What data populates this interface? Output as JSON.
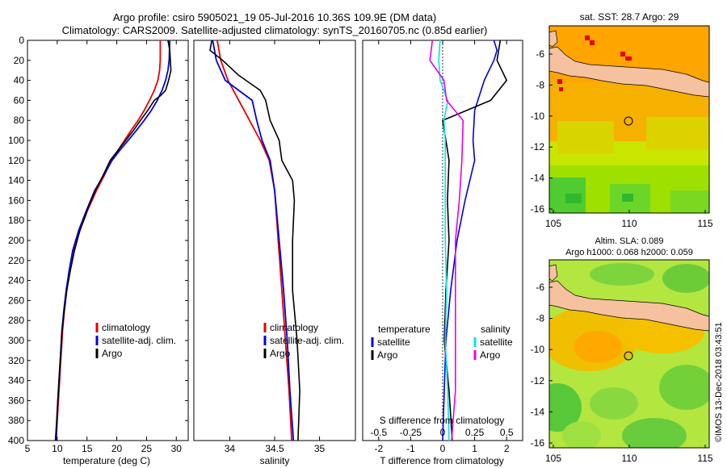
{
  "header": {
    "title_line1": "Argo profile: csiro 5905021_19 05-Jul-2016 10.36S 109.9E (DM data)",
    "title_line2": "Climatology: CARS2009. Satellite-adjusted climatology: synTS_20160705.nc (0.85d earlier)"
  },
  "colors": {
    "climatology": "#e60000",
    "satellite": "#0000e6",
    "argo": "#000000",
    "sat_salinity": "#00e6e6",
    "argo_salinity_diff": "#e600e6"
  },
  "depth_ticks": [
    "0",
    "20",
    "40",
    "60",
    "80",
    "100",
    "120",
    "140",
    "160",
    "180",
    "200",
    "220",
    "240",
    "260",
    "280",
    "300",
    "320",
    "340",
    "360",
    "380",
    "400"
  ],
  "chart_data": [
    {
      "type": "line",
      "xlabel": "temperature (deg C)",
      "ylabel": "depth",
      "xlim": [
        5,
        32
      ],
      "ylim": [
        400,
        0
      ],
      "xticks": [
        "5",
        "10",
        "15",
        "20",
        "25",
        "30"
      ],
      "legend": [
        "climatology",
        "satellite-adj. clim.",
        "Argo"
      ],
      "series": [
        {
          "name": "climatology",
          "points": [
            [
              27.3,
              0
            ],
            [
              27.3,
              20
            ],
            [
              27.2,
              30
            ],
            [
              26.9,
              40
            ],
            [
              26.3,
              50
            ],
            [
              25.5,
              60
            ],
            [
              24.6,
              70
            ],
            [
              23.6,
              80
            ],
            [
              22.4,
              90
            ],
            [
              21.3,
              100
            ],
            [
              20.2,
              110
            ],
            [
              19.1,
              120
            ],
            [
              17.9,
              135
            ],
            [
              16.6,
              150
            ],
            [
              15.1,
              170
            ],
            [
              13.8,
              190
            ],
            [
              12.8,
              210
            ],
            [
              12.1,
              230
            ],
            [
              11.6,
              250
            ],
            [
              11.2,
              270
            ],
            [
              10.9,
              290
            ],
            [
              10.7,
              310
            ],
            [
              10.5,
              330
            ],
            [
              10.3,
              350
            ],
            [
              10.1,
              370
            ],
            [
              9.9,
              390
            ],
            [
              9.8,
              400
            ]
          ]
        },
        {
          "name": "satellite-adj. clim.",
          "points": [
            [
              28.9,
              0
            ],
            [
              28.8,
              20
            ],
            [
              28.6,
              30
            ],
            [
              28.2,
              40
            ],
            [
              27.6,
              50
            ],
            [
              26.8,
              60
            ],
            [
              25.8,
              70
            ],
            [
              24.6,
              80
            ],
            [
              23.3,
              90
            ],
            [
              21.9,
              100
            ],
            [
              20.5,
              110
            ],
            [
              19.2,
              120
            ],
            [
              17.8,
              135
            ],
            [
              16.3,
              150
            ],
            [
              14.9,
              170
            ],
            [
              13.6,
              190
            ],
            [
              12.6,
              210
            ],
            [
              12.0,
              230
            ],
            [
              11.5,
              250
            ],
            [
              11.1,
              270
            ],
            [
              10.8,
              290
            ],
            [
              10.6,
              310
            ],
            [
              10.4,
              330
            ],
            [
              10.2,
              350
            ],
            [
              10.0,
              370
            ],
            [
              9.9,
              390
            ],
            [
              9.8,
              400
            ]
          ]
        },
        {
          "name": "Argo",
          "points": [
            [
              28.6,
              0
            ],
            [
              28.9,
              10
            ],
            [
              29.0,
              20
            ],
            [
              29.1,
              30
            ],
            [
              28.7,
              40
            ],
            [
              28.2,
              50
            ],
            [
              27.4,
              55
            ],
            [
              26.3,
              60
            ],
            [
              25.2,
              70
            ],
            [
              24.0,
              80
            ],
            [
              22.8,
              90
            ],
            [
              21.5,
              100
            ],
            [
              20.2,
              110
            ],
            [
              18.9,
              120
            ],
            [
              17.7,
              135
            ],
            [
              16.4,
              150
            ],
            [
              15.0,
              170
            ],
            [
              13.8,
              190
            ],
            [
              12.9,
              210
            ],
            [
              12.2,
              230
            ],
            [
              11.6,
              250
            ],
            [
              11.2,
              270
            ],
            [
              10.8,
              290
            ],
            [
              10.6,
              310
            ],
            [
              10.4,
              330
            ],
            [
              10.2,
              350
            ],
            [
              10.0,
              370
            ],
            [
              9.8,
              390
            ],
            [
              9.7,
              400
            ]
          ]
        }
      ]
    },
    {
      "type": "line",
      "xlabel": "salinity",
      "ylabel": "depth",
      "xlim": [
        33.6,
        35.4
      ],
      "ylim": [
        400,
        0
      ],
      "xticks": [
        "34",
        "34.5",
        "35"
      ],
      "legend": [
        "climatology",
        "satellite-adj. clim.",
        "Argo"
      ],
      "series": [
        {
          "name": "climatology",
          "points": [
            [
              33.86,
              0
            ],
            [
              33.9,
              20
            ],
            [
              33.98,
              40
            ],
            [
              34.1,
              60
            ],
            [
              34.22,
              80
            ],
            [
              34.34,
              100
            ],
            [
              34.44,
              120
            ],
            [
              34.5,
              150
            ],
            [
              34.54,
              200
            ],
            [
              34.58,
              250
            ],
            [
              34.62,
              300
            ],
            [
              34.66,
              350
            ],
            [
              34.69,
              400
            ]
          ]
        },
        {
          "name": "satellite-adj. clim.",
          "points": [
            [
              33.81,
              0
            ],
            [
              33.85,
              20
            ],
            [
              33.95,
              40
            ],
            [
              34.25,
              60
            ],
            [
              34.3,
              80
            ],
            [
              34.36,
              100
            ],
            [
              34.45,
              120
            ],
            [
              34.5,
              150
            ],
            [
              34.55,
              200
            ],
            [
              34.6,
              250
            ],
            [
              34.64,
              300
            ],
            [
              34.67,
              350
            ],
            [
              34.71,
              400
            ]
          ]
        },
        {
          "name": "Argo",
          "points": [
            [
              33.8,
              0
            ],
            [
              33.78,
              10
            ],
            [
              33.92,
              20
            ],
            [
              34.1,
              35
            ],
            [
              34.34,
              50
            ],
            [
              34.4,
              60
            ],
            [
              34.45,
              80
            ],
            [
              34.55,
              100
            ],
            [
              34.58,
              120
            ],
            [
              34.7,
              140
            ],
            [
              34.72,
              160
            ],
            [
              34.7,
              200
            ],
            [
              34.7,
              250
            ],
            [
              34.75,
              300
            ],
            [
              34.78,
              350
            ],
            [
              34.76,
              400
            ]
          ]
        }
      ]
    },
    {
      "type": "line",
      "xlabel": "T difference from climatology",
      "xlabel_top": "S difference from climatology",
      "ylabel": "depth",
      "xlim": [
        -2.5,
        2.5
      ],
      "ylim": [
        400,
        0
      ],
      "xticks": [
        "-2",
        "-1",
        "0",
        "1",
        "2"
      ],
      "xticks_top": [
        "-0.5",
        "-0.25",
        "0",
        "0.25",
        "0.5"
      ],
      "legend_temperature_title": "temperature",
      "legend_temperature": [
        "satellite",
        "Argo"
      ],
      "legend_salinity_title": "salinity",
      "legend_salinity": [
        "satellite",
        "Argo"
      ],
      "series": [
        {
          "name": "temperature satellite",
          "points": [
            [
              1.6,
              0
            ],
            [
              1.7,
              10
            ],
            [
              1.6,
              20
            ],
            [
              1.3,
              40
            ],
            [
              1.0,
              70
            ],
            [
              0.95,
              100
            ],
            [
              1.0,
              120
            ],
            [
              0.7,
              160
            ],
            [
              0.45,
              200
            ],
            [
              0.25,
              250
            ],
            [
              0.1,
              300
            ],
            [
              0.05,
              350
            ],
            [
              0.0,
              400
            ]
          ]
        },
        {
          "name": "temperature Argo",
          "points": [
            [
              1.8,
              0
            ],
            [
              1.7,
              20
            ],
            [
              2.0,
              40
            ],
            [
              1.5,
              60
            ],
            [
              0.0,
              80
            ],
            [
              0.1,
              100
            ],
            [
              0.2,
              120
            ],
            [
              0.15,
              160
            ],
            [
              0.2,
              200
            ],
            [
              0.1,
              250
            ],
            [
              0.05,
              300
            ],
            [
              0.2,
              350
            ],
            [
              0.3,
              400
            ]
          ]
        },
        {
          "name": "salinity satellite",
          "points": [
            [
              -0.02,
              0
            ],
            [
              -0.03,
              20
            ],
            [
              -0.02,
              40
            ],
            [
              0.04,
              60
            ],
            [
              0.01,
              80
            ],
            [
              0.02,
              100
            ],
            [
              0.02,
              130
            ],
            [
              0.02,
              200
            ],
            [
              0.03,
              250
            ],
            [
              0.02,
              300
            ],
            [
              0.04,
              350
            ],
            [
              0.05,
              400
            ]
          ]
        },
        {
          "name": "salinity Argo",
          "points": [
            [
              -0.08,
              0
            ],
            [
              -0.1,
              20
            ],
            [
              0.01,
              40
            ],
            [
              0.03,
              60
            ],
            [
              0.16,
              80
            ],
            [
              0.15,
              120
            ],
            [
              0.13,
              160
            ],
            [
              0.1,
              200
            ],
            [
              0.1,
              250
            ],
            [
              0.1,
              300
            ],
            [
              0.1,
              350
            ],
            [
              0.07,
              400
            ]
          ]
        }
      ]
    }
  ],
  "maps": {
    "sst": {
      "title": "sat. SST: 28.7  Argo: 29",
      "lat_ticks": [
        "-6",
        "-8",
        "-10",
        "-12",
        "-14",
        "-16"
      ],
      "lon_ticks": [
        "105",
        "110",
        "115"
      ]
    },
    "sla": {
      "title_line1": "Altim. SLA: 0.089",
      "title_line2": "Argo h1000: 0.068  h2000: 0.059",
      "lat_ticks": [
        "-6",
        "-8",
        "-10",
        "-12",
        "-14",
        "-16"
      ],
      "lon_ticks": [
        "105",
        "110",
        "115"
      ]
    }
  },
  "credit": "©IMOS 13-Dec-2018 03:43:51"
}
